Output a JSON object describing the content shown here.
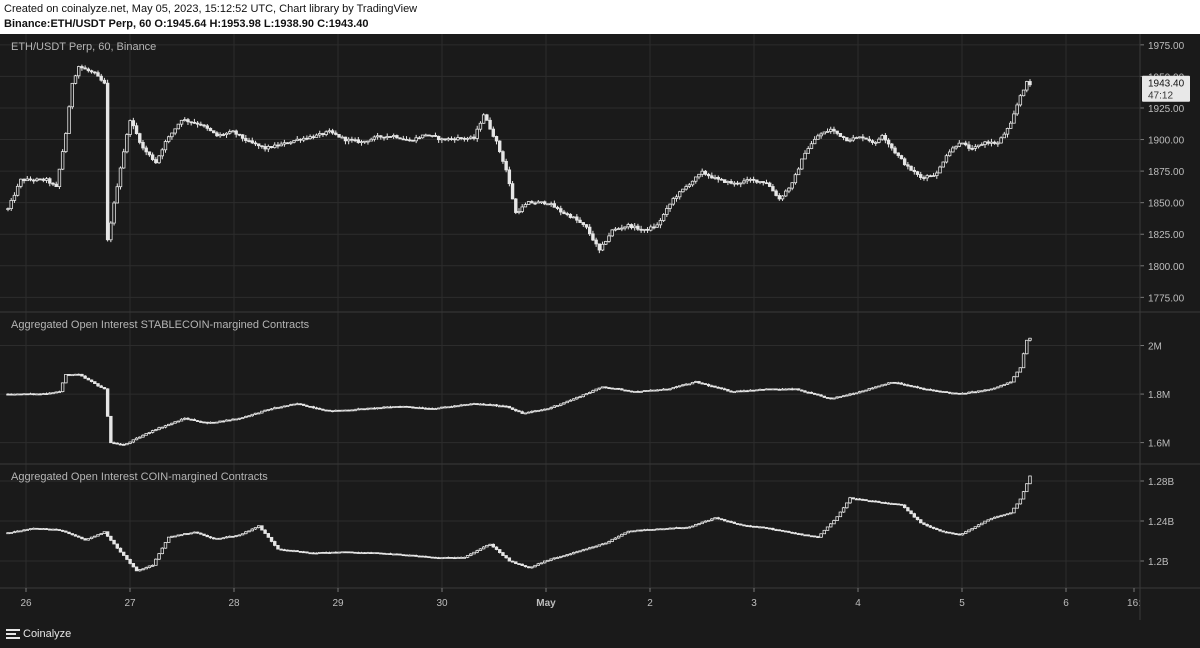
{
  "header": {
    "line1": "Created on coinalyze.net, May 05, 2023, 15:12:52 UTC, Chart library by TradingView",
    "line2": {
      "symbol": "Binance:ETH/USDT Perp, 60",
      "o_label": "O:",
      "o": "1945.64",
      "h_label": "H:",
      "h": "1953.98",
      "l_label": "L:",
      "l": "1938.90",
      "c_label": "C:",
      "c": "1943.40"
    }
  },
  "footer": {
    "brand": "Coinalyze"
  },
  "colors": {
    "background": "#1a1a1a",
    "grid": "#2c2c2c",
    "candle": "#e6e6e6",
    "text": "#bdbdbd",
    "separator": "#3a3a3a"
  },
  "chart_data": [
    {
      "type": "candlestick",
      "title": "ETH/USDT Perp, 60, Binance",
      "ylim": [
        1765,
        1982
      ],
      "yticks": [
        "1975.00",
        "1950.00",
        "1925.00",
        "1900.00",
        "1875.00",
        "1850.00",
        "1825.00",
        "1800.00",
        "1775.00"
      ],
      "ytick_values": [
        1975,
        1950,
        1925,
        1900,
        1875,
        1850,
        1825,
        1800,
        1775
      ],
      "last_price_label": "1943.40",
      "countdown_label": "47:12",
      "anchors": [
        [
          0,
          1845
        ],
        [
          4,
          1868
        ],
        [
          12,
          1868
        ],
        [
          15,
          1862
        ],
        [
          18,
          1905
        ],
        [
          20,
          1945
        ],
        [
          22,
          1958
        ],
        [
          27,
          1952
        ],
        [
          30,
          1944
        ],
        [
          31,
          1820
        ],
        [
          35,
          1878
        ],
        [
          38,
          1916
        ],
        [
          42,
          1893
        ],
        [
          46,
          1882
        ],
        [
          49,
          1898
        ],
        [
          54,
          1916
        ],
        [
          60,
          1912
        ],
        [
          65,
          1903
        ],
        [
          70,
          1906
        ],
        [
          75,
          1898
        ],
        [
          80,
          1893
        ],
        [
          85,
          1896
        ],
        [
          90,
          1900
        ],
        [
          96,
          1903
        ],
        [
          100,
          1906
        ],
        [
          105,
          1900
        ],
        [
          110,
          1898
        ],
        [
          115,
          1902
        ],
        [
          120,
          1903
        ],
        [
          125,
          1899
        ],
        [
          130,
          1904
        ],
        [
          135,
          1900
        ],
        [
          140,
          1901
        ],
        [
          145,
          1901
        ],
        [
          148,
          1920
        ],
        [
          152,
          1898
        ],
        [
          155,
          1876
        ],
        [
          158,
          1842
        ],
        [
          162,
          1850
        ],
        [
          168,
          1850
        ],
        [
          172,
          1843
        ],
        [
          176,
          1838
        ],
        [
          180,
          1830
        ],
        [
          184,
          1812
        ],
        [
          188,
          1828
        ],
        [
          193,
          1832
        ],
        [
          198,
          1828
        ],
        [
          202,
          1832
        ],
        [
          207,
          1853
        ],
        [
          212,
          1865
        ],
        [
          216,
          1874
        ],
        [
          221,
          1868
        ],
        [
          226,
          1865
        ],
        [
          231,
          1868
        ],
        [
          236,
          1866
        ],
        [
          240,
          1853
        ],
        [
          244,
          1865
        ],
        [
          248,
          1890
        ],
        [
          252,
          1903
        ],
        [
          256,
          1908
        ],
        [
          261,
          1900
        ],
        [
          266,
          1902
        ],
        [
          270,
          1897
        ],
        [
          272,
          1904
        ],
        [
          276,
          1890
        ],
        [
          280,
          1878
        ],
        [
          284,
          1870
        ],
        [
          289,
          1873
        ],
        [
          292,
          1888
        ],
        [
          296,
          1898
        ],
        [
          300,
          1892
        ],
        [
          304,
          1898
        ],
        [
          308,
          1897
        ],
        [
          312,
          1912
        ],
        [
          315,
          1935
        ],
        [
          317,
          1945
        ],
        [
          318,
          1943.4
        ]
      ]
    },
    {
      "type": "candlestick",
      "title": "Aggregated Open Interest STABLECOIN-margined Contracts",
      "ylim": [
        1.52,
        2.13
      ],
      "yticks": [
        "2M",
        "1.8M",
        "1.6M"
      ],
      "ytick_values": [
        2.0,
        1.8,
        1.6
      ],
      "anchors": [
        [
          0,
          1.8
        ],
        [
          10,
          1.8
        ],
        [
          16,
          1.81
        ],
        [
          18,
          1.88
        ],
        [
          22,
          1.88
        ],
        [
          30,
          1.82
        ],
        [
          32,
          1.6
        ],
        [
          36,
          1.59
        ],
        [
          45,
          1.65
        ],
        [
          55,
          1.7
        ],
        [
          62,
          1.68
        ],
        [
          72,
          1.7
        ],
        [
          82,
          1.74
        ],
        [
          90,
          1.76
        ],
        [
          100,
          1.73
        ],
        [
          112,
          1.74
        ],
        [
          122,
          1.75
        ],
        [
          132,
          1.74
        ],
        [
          145,
          1.76
        ],
        [
          155,
          1.75
        ],
        [
          160,
          1.72
        ],
        [
          168,
          1.74
        ],
        [
          176,
          1.78
        ],
        [
          185,
          1.83
        ],
        [
          195,
          1.81
        ],
        [
          205,
          1.82
        ],
        [
          214,
          1.85
        ],
        [
          225,
          1.81
        ],
        [
          235,
          1.82
        ],
        [
          245,
          1.82
        ],
        [
          256,
          1.78
        ],
        [
          265,
          1.81
        ],
        [
          275,
          1.85
        ],
        [
          285,
          1.82
        ],
        [
          296,
          1.8
        ],
        [
          306,
          1.82
        ],
        [
          312,
          1.85
        ],
        [
          315,
          1.91
        ],
        [
          317,
          2.02
        ],
        [
          318,
          2.03
        ]
      ]
    },
    {
      "type": "candlestick",
      "title": "Aggregated Open Interest COIN-margined Contracts",
      "ylim": [
        1.175,
        1.295
      ],
      "yticks": [
        "1.28B",
        "1.24B",
        "1.2B"
      ],
      "ytick_values": [
        1.28,
        1.24,
        1.2
      ],
      "anchors": [
        [
          0,
          1.228
        ],
        [
          8,
          1.233
        ],
        [
          16,
          1.231
        ],
        [
          24,
          1.221
        ],
        [
          30,
          1.229
        ],
        [
          34,
          1.213
        ],
        [
          40,
          1.19
        ],
        [
          45,
          1.196
        ],
        [
          50,
          1.224
        ],
        [
          58,
          1.229
        ],
        [
          64,
          1.222
        ],
        [
          72,
          1.226
        ],
        [
          78,
          1.235
        ],
        [
          84,
          1.212
        ],
        [
          94,
          1.208
        ],
        [
          104,
          1.209
        ],
        [
          114,
          1.208
        ],
        [
          124,
          1.206
        ],
        [
          134,
          1.203
        ],
        [
          142,
          1.204
        ],
        [
          150,
          1.217
        ],
        [
          156,
          1.2
        ],
        [
          162,
          1.193
        ],
        [
          168,
          1.201
        ],
        [
          178,
          1.21
        ],
        [
          186,
          1.218
        ],
        [
          193,
          1.23
        ],
        [
          203,
          1.232
        ],
        [
          212,
          1.234
        ],
        [
          220,
          1.243
        ],
        [
          228,
          1.236
        ],
        [
          236,
          1.233
        ],
        [
          244,
          1.228
        ],
        [
          252,
          1.224
        ],
        [
          258,
          1.244
        ],
        [
          262,
          1.263
        ],
        [
          268,
          1.26
        ],
        [
          278,
          1.256
        ],
        [
          284,
          1.238
        ],
        [
          290,
          1.23
        ],
        [
          296,
          1.226
        ],
        [
          302,
          1.236
        ],
        [
          306,
          1.243
        ],
        [
          312,
          1.248
        ],
        [
          315,
          1.262
        ],
        [
          318,
          1.285
        ]
      ]
    }
  ],
  "xaxis": {
    "labels": [
      "26",
      "27",
      "28",
      "29",
      "30",
      "May",
      "2",
      "3",
      "4",
      "5",
      "6",
      "16:"
    ]
  }
}
